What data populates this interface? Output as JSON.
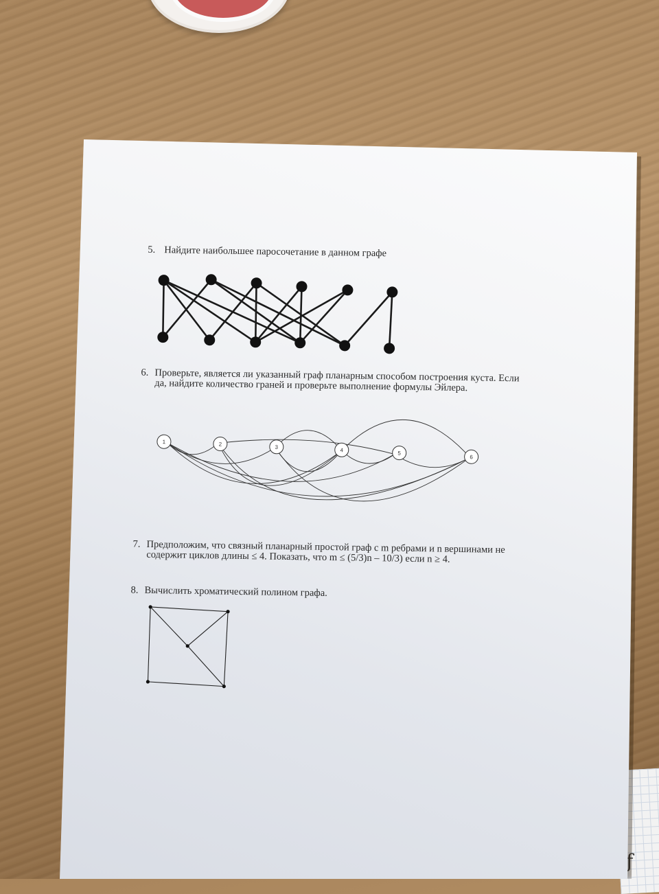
{
  "tasks": [
    {
      "number": "5.",
      "lines": [
        "Найдите наибольшее паросочетание в данном графе"
      ]
    },
    {
      "number": "6.",
      "lines": [
        "Проверьте, является ли указанный граф планарным способом построения куста. Если",
        "да, найдите количество граней и проверьте выполнение формулы Эйлера."
      ]
    },
    {
      "number": "7.",
      "lines": [
        "Предположим, что связный планарный простой граф с m ребрами и n вершинами не",
        "содержит циклов длины ≤ 4. Показать, что m ≤ (5/3)n – 10/3) если n ≥ 4."
      ]
    },
    {
      "number": "8.",
      "lines": [
        "Вычислить хроматический полином графа."
      ]
    }
  ],
  "graph6_nodes": [
    "1",
    "2",
    "3",
    "4",
    "5",
    "6"
  ],
  "colors": {
    "ink": "#1a1a1a",
    "paper": "#f3f4f6",
    "wood": "#a9855c"
  }
}
